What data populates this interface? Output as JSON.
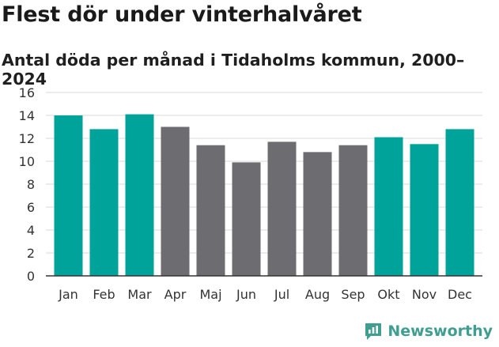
{
  "colors": {
    "highlight": "#00a39a",
    "normal": "#6d6c71",
    "grid": "#d9d9d9",
    "axis": "#333333",
    "brand": "#3f9e91"
  },
  "branding": {
    "name": "Newsworthy",
    "icon": "bar-chart-speech-icon"
  },
  "chart_data": {
    "type": "bar",
    "title": "Flest dör under vinterhalvåret",
    "subtitle": "Antal döda per månad i Tidaholms kommun, 2000–2024",
    "xlabel": "",
    "ylabel": "",
    "ylim": [
      0,
      16
    ],
    "yticks": [
      0,
      2,
      4,
      6,
      8,
      10,
      12,
      14,
      16
    ],
    "grid": true,
    "categories": [
      "Jan",
      "Feb",
      "Mar",
      "Apr",
      "Maj",
      "Jun",
      "Jul",
      "Aug",
      "Sep",
      "Okt",
      "Nov",
      "Dec"
    ],
    "values": [
      14.0,
      12.8,
      14.1,
      13.0,
      11.4,
      9.9,
      11.7,
      10.8,
      11.4,
      12.1,
      11.5,
      12.8
    ],
    "highlighted": [
      true,
      true,
      true,
      false,
      false,
      false,
      false,
      false,
      false,
      true,
      true,
      true
    ]
  }
}
